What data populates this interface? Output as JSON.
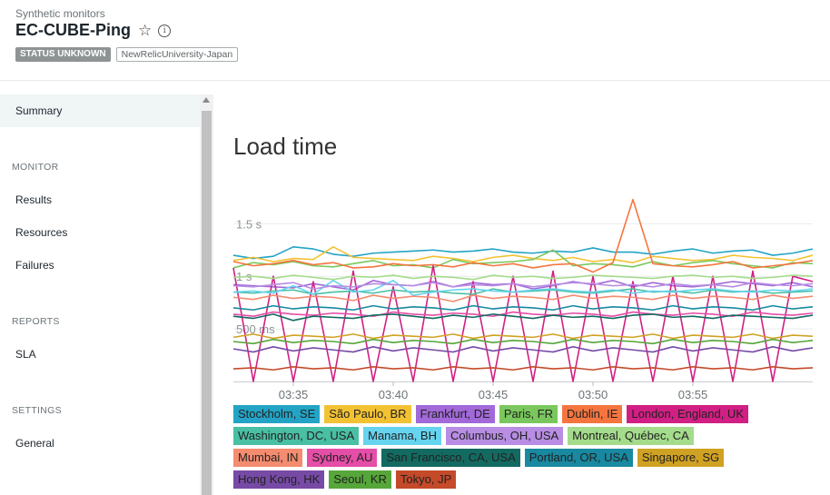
{
  "header": {
    "breadcrumb": "Synthetic monitors",
    "title": "EC-CUBE-Ping",
    "star_icon": "star-icon",
    "info_icon": "info-icon",
    "status_badge": "STATUS UNKNOWN",
    "account_tag": "NewRelicUniversity-Japan"
  },
  "sidebar": {
    "summary": "Summary",
    "monitor_heading": "MONITOR",
    "results": "Results",
    "resources": "Resources",
    "failures": "Failures",
    "reports_heading": "REPORTS",
    "sla": "SLA",
    "settings_heading": "SETTINGS",
    "general": "General"
  },
  "panel": {
    "title": "Load time"
  },
  "chart_data": {
    "type": "line",
    "y_ticks": [
      "1.5 s",
      "1 s",
      "500 ms"
    ],
    "y_tick_values": [
      1500,
      1000,
      500
    ],
    "x_ticks": [
      "03:35",
      "03:40",
      "03:45",
      "03:50",
      "03:55"
    ],
    "x_tick_minutes": [
      3,
      8,
      13,
      18,
      23
    ],
    "ylim": [
      0,
      1900
    ],
    "x_range_minutes": [
      0,
      29
    ],
    "series": [
      {
        "name": "Stockholm, SE",
        "color": "#23a4c6",
        "values": [
          1200,
          1170,
          1190,
          1280,
          1260,
          1210,
          1190,
          1220,
          1230,
          1240,
          1250,
          1230,
          1240,
          1260,
          1230,
          1220,
          1240,
          1230,
          1270,
          1230,
          1230,
          1210,
          1240,
          1260,
          1220,
          1240,
          1250,
          1200,
          1220,
          1260
        ]
      },
      {
        "name": "São Paulo, BR",
        "color": "#f3c233",
        "values": [
          1150,
          1180,
          1140,
          1170,
          1160,
          1280,
          1180,
          1170,
          1160,
          1150,
          1190,
          1170,
          1140,
          1180,
          1200,
          1170,
          1150,
          1180,
          1140,
          1160,
          1130,
          1190,
          1170,
          1150,
          1160,
          1200,
          1180,
          1170,
          1150,
          1200
        ]
      },
      {
        "name": "Frankfurt, DE",
        "color": "#a269d8",
        "values": [
          920,
          910,
          900,
          890,
          930,
          900,
          870,
          960,
          920,
          910,
          950,
          900,
          940,
          920,
          930,
          880,
          910,
          950,
          920,
          960,
          900,
          940,
          910,
          900,
          920,
          950,
          930,
          910,
          940,
          900
        ]
      },
      {
        "name": "Paris, FR",
        "color": "#7ac85d",
        "values": [
          1080,
          1130,
          1110,
          1140,
          1100,
          1090,
          1120,
          1150,
          1100,
          1110,
          1080,
          1160,
          1120,
          1130,
          1140,
          1160,
          1250,
          1100,
          1120,
          1110,
          1090,
          1140,
          1100,
          1130,
          1150,
          1120,
          1100,
          1080,
          1130,
          1120
        ]
      },
      {
        "name": "Dublin, IE",
        "color": "#f5753f",
        "values": [
          1140,
          1100,
          1120,
          1150,
          1110,
          1130,
          1080,
          1090,
          1120,
          1100,
          1110,
          1090,
          1130,
          1100,
          1120,
          1080,
          1110,
          1120,
          1040,
          1130,
          1730,
          1120,
          1100,
          1090,
          1110,
          1140,
          1080,
          1100,
          1120,
          1150
        ]
      },
      {
        "name": "London, England, UK",
        "color": "#d21f84",
        "values": [
          1080,
          0,
          1000,
          0,
          950,
          0,
          1050,
          0,
          900,
          0,
          1100,
          0,
          950,
          0,
          1000,
          0,
          1050,
          0,
          1000,
          0,
          950,
          0,
          1000,
          0,
          1000,
          0,
          1050,
          0,
          1000,
          950
        ]
      },
      {
        "name": "Washington, DC, USA",
        "color": "#49bfa4",
        "values": [
          850,
          840,
          860,
          870,
          830,
          850,
          860,
          840,
          870,
          850,
          860,
          840,
          830,
          880,
          850,
          860,
          870,
          850,
          840,
          860,
          880,
          850,
          860,
          840,
          870,
          850,
          860,
          840,
          850,
          860
        ]
      },
      {
        "name": "Manama, BH",
        "color": "#66d4ef",
        "values": [
          850,
          860,
          840,
          910,
          830,
          960,
          850,
          870,
          960,
          820,
          850,
          870,
          880,
          860,
          850,
          870,
          880,
          860,
          850,
          870,
          840,
          860,
          850,
          870,
          880,
          860,
          850,
          870,
          860,
          880
        ]
      },
      {
        "name": "Columbus, OH, USA",
        "color": "#b88de3",
        "values": [
          910,
          900,
          920,
          940,
          880,
          910,
          900,
          930,
          920,
          910,
          940,
          900,
          920,
          910,
          930,
          900,
          920,
          940,
          930,
          910,
          920,
          900,
          930,
          910,
          920,
          900,
          940,
          920,
          910,
          930
        ]
      },
      {
        "name": "Montreal, Québec, CA",
        "color": "#a4dc8c",
        "values": [
          990,
          1000,
          980,
          1010,
          990,
          970,
          1000,
          990,
          1010,
          980,
          1000,
          990,
          970,
          1010,
          990,
          1000,
          980,
          990,
          1010,
          1000,
          990,
          980,
          1000,
          1010,
          990,
          1000,
          980,
          990,
          1010,
          1000
        ]
      },
      {
        "name": "Mumbai, IN",
        "color": "#f58b6f",
        "values": [
          800,
          780,
          820,
          790,
          810,
          800,
          770,
          820,
          790,
          810,
          800,
          760,
          820,
          790,
          810,
          800,
          780,
          820,
          790,
          810,
          800,
          780,
          820,
          790,
          810,
          800,
          780,
          820,
          790,
          810
        ]
      },
      {
        "name": "Sydney, AU",
        "color": "#e44ea7",
        "values": [
          640,
          620,
          660,
          640,
          630,
          650,
          640,
          620,
          660,
          640,
          630,
          650,
          640,
          620,
          660,
          640,
          630,
          650,
          640,
          620,
          660,
          640,
          630,
          650,
          640,
          620,
          660,
          640,
          630,
          650
        ]
      },
      {
        "name": "San Francisco, CA, USA",
        "color": "#136a61",
        "values": [
          620,
          600,
          640,
          580,
          620,
          610,
          600,
          630,
          640,
          620,
          600,
          630,
          610,
          640,
          620,
          600,
          630,
          610,
          620,
          600,
          630,
          640,
          610,
          620,
          600,
          630,
          620,
          610,
          600,
          630
        ]
      },
      {
        "name": "Portland, OR, USA",
        "color": "#1889a0",
        "values": [
          700,
          680,
          720,
          690,
          710,
          700,
          680,
          720,
          690,
          710,
          700,
          680,
          720,
          690,
          710,
          700,
          680,
          720,
          690,
          710,
          700,
          680,
          720,
          690,
          710,
          700,
          680,
          720,
          690,
          710
        ]
      },
      {
        "name": "Singapore, SG",
        "color": "#d0a223",
        "values": [
          420,
          450,
          410,
          440,
          430,
          420,
          450,
          410,
          440,
          430,
          420,
          450,
          410,
          440,
          430,
          420,
          450,
          410,
          440,
          430,
          420,
          450,
          410,
          440,
          430,
          420,
          450,
          410,
          440,
          430
        ]
      },
      {
        "name": "Hong Kong, HK",
        "color": "#774aa6",
        "values": [
          310,
          280,
          330,
          290,
          320,
          300,
          280,
          330,
          290,
          320,
          300,
          280,
          330,
          290,
          320,
          300,
          280,
          330,
          290,
          320,
          300,
          280,
          330,
          290,
          320,
          300,
          280,
          330,
          290,
          320
        ]
      },
      {
        "name": "Seoul, KR",
        "color": "#56a63a",
        "values": [
          380,
          360,
          400,
          370,
          390,
          380,
          360,
          400,
          370,
          390,
          380,
          360,
          400,
          370,
          390,
          380,
          360,
          400,
          370,
          390,
          380,
          360,
          400,
          370,
          390,
          380,
          360,
          400,
          370,
          390
        ]
      },
      {
        "name": "Tokyo, JP",
        "color": "#c44a2a",
        "values": [
          120,
          130,
          110,
          140,
          120,
          130,
          110,
          140,
          120,
          130,
          110,
          140,
          120,
          130,
          110,
          140,
          120,
          130,
          110,
          140,
          120,
          130,
          110,
          140,
          120,
          130,
          110,
          140,
          120,
          130
        ]
      }
    ]
  }
}
